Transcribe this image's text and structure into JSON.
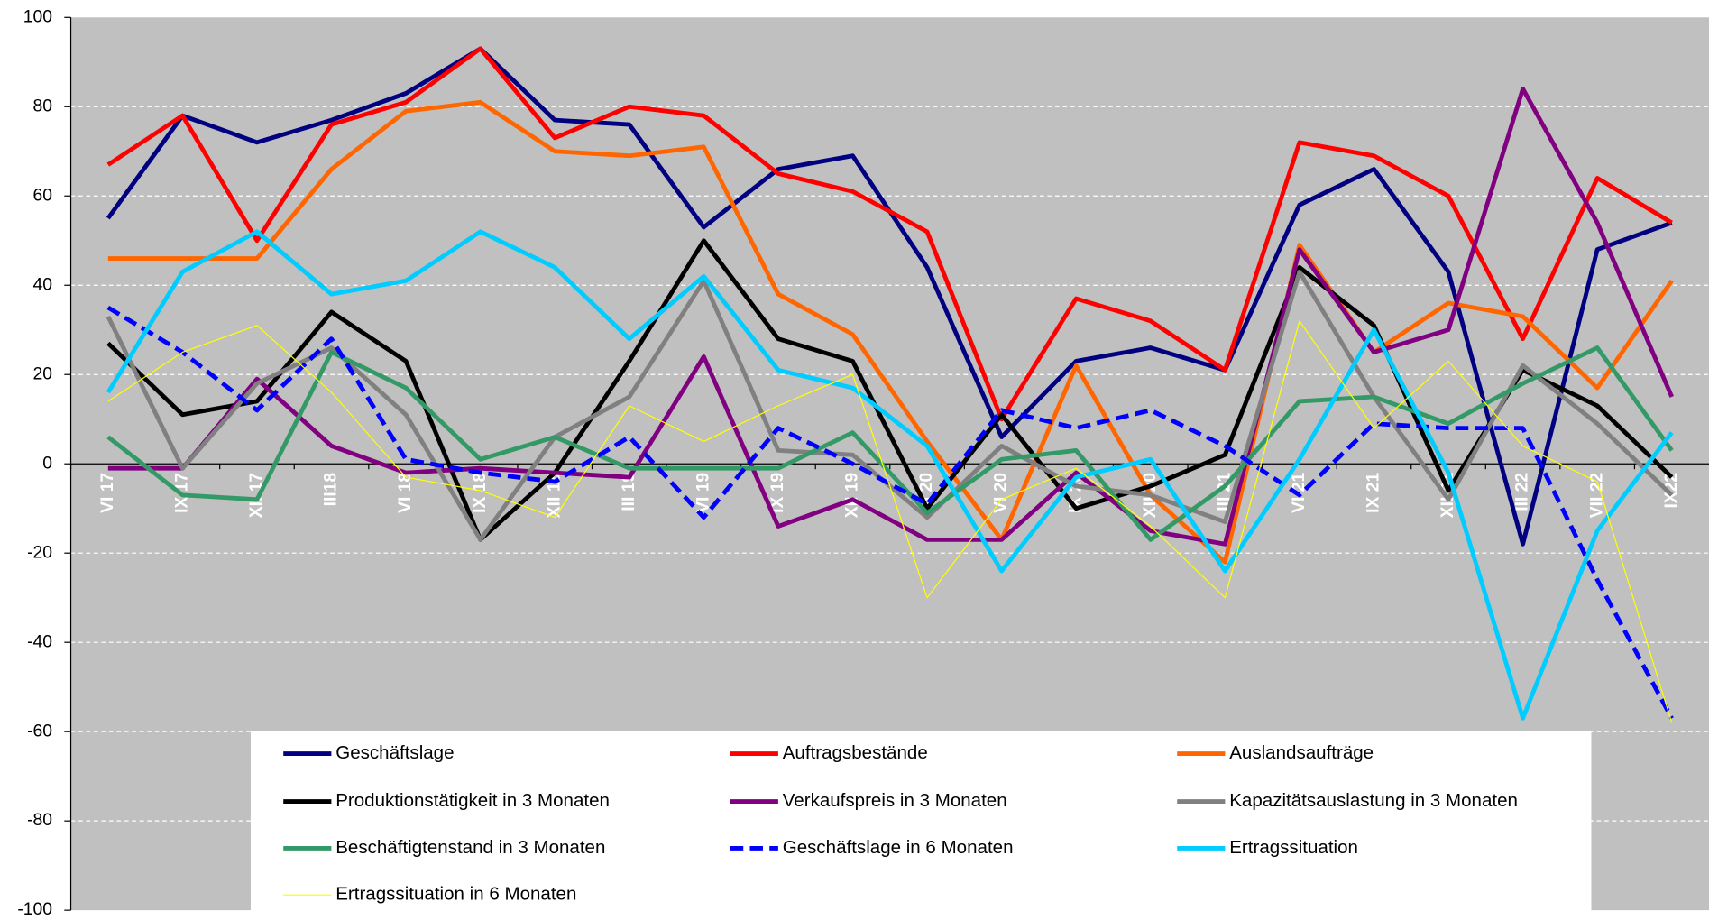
{
  "chart_data": {
    "type": "line",
    "categories": [
      "VI 17",
      "IX 17",
      "XII 17",
      "III18",
      "VI 18",
      "IX 18",
      "XII 18",
      "III 19",
      "VI 19",
      "IX 19",
      "XII 19",
      "III 20",
      "VI 20",
      "IX 20",
      "XII 20",
      "III 21",
      "VI 21",
      "IX 21",
      "XII 21",
      "III 22",
      "VII 22",
      "IX22"
    ],
    "series": [
      {
        "name": "Geschäftslage",
        "color": "#000080",
        "values": [
          55,
          78,
          72,
          77,
          83,
          93,
          77,
          76,
          53,
          66,
          69,
          44,
          6,
          23,
          26,
          21,
          58,
          66,
          43,
          -18,
          48,
          54
        ]
      },
      {
        "name": "Auftragsbestände",
        "color": "#ff0000",
        "values": [
          67,
          78,
          50,
          76,
          81,
          93,
          73,
          80,
          78,
          65,
          61,
          52,
          10,
          37,
          32,
          21,
          72,
          69,
          60,
          28,
          64,
          54
        ]
      },
      {
        "name": "Auslandsaufträge",
        "color": "#ff6600",
        "values": [
          46,
          46,
          46,
          66,
          79,
          81,
          70,
          69,
          71,
          38,
          29,
          5,
          -17,
          22,
          -7,
          -22,
          49,
          25,
          36,
          33,
          17,
          41
        ]
      },
      {
        "name": "Produktionstätigkeit in 3 Monaten",
        "color": "#000000",
        "values": [
          27,
          11,
          14,
          34,
          23,
          -17,
          -2,
          23,
          50,
          28,
          23,
          -10,
          11,
          -10,
          -5,
          2,
          44,
          31,
          -6,
          21,
          13,
          -3
        ]
      },
      {
        "name": "Verkaufspreis in 3 Monaten",
        "color": "#800080",
        "values": [
          -1,
          -1,
          19,
          4,
          -2,
          -1,
          -2,
          -3,
          24,
          -14,
          -8,
          -17,
          -17,
          -2,
          -15,
          -18,
          48,
          25,
          30,
          84,
          54,
          15
        ]
      },
      {
        "name": "Kapazitätsauslastung in 3 Monaten",
        "color": "#808080",
        "values": [
          33,
          -1,
          18,
          26,
          11,
          -17,
          6,
          15,
          41,
          3,
          2,
          -12,
          4,
          -5,
          -7,
          -13,
          43,
          15,
          -8,
          22,
          9,
          -7
        ]
      },
      {
        "name": "Beschäftigtenstand in 3 Monaten",
        "color": "#339966",
        "values": [
          6,
          -7,
          -8,
          25,
          17,
          1,
          6,
          -1,
          -1,
          -1,
          7,
          -11,
          1,
          3,
          -17,
          -5,
          14,
          15,
          9,
          18,
          26,
          3
        ]
      },
      {
        "name": "Geschäftslage in 6 Monaten",
        "color": "#0000ff",
        "dashed": true,
        "values": [
          35,
          25,
          12,
          28,
          1,
          -2,
          -4,
          6,
          -12,
          8,
          0,
          -9,
          12,
          8,
          12,
          4,
          -7,
          9,
          8,
          8,
          -26,
          -57
        ]
      },
      {
        "name": "Ertragssituation",
        "color": "#00ccff",
        "values": [
          16,
          43,
          52,
          38,
          41,
          52,
          44,
          28,
          42,
          21,
          17,
          4,
          -24,
          -3,
          1,
          -24,
          1,
          30,
          -2,
          -57,
          -15,
          7
        ]
      },
      {
        "name": "Ertragssituation in 6 Monaten",
        "color": "#ffff00",
        "thin": true,
        "values": [
          14,
          25,
          31,
          16,
          -3,
          -6,
          -12,
          13,
          5,
          13,
          20,
          -30,
          -8,
          -1,
          -14,
          -30,
          32,
          8,
          23,
          4,
          -4,
          -58
        ]
      }
    ],
    "ylim": [
      -100,
      100
    ],
    "yticks": [
      -100,
      -80,
      -60,
      -40,
      -20,
      0,
      20,
      40,
      60,
      80,
      100
    ],
    "grid": true,
    "legend": "bottom",
    "plot_background": "#c0c0c0"
  }
}
